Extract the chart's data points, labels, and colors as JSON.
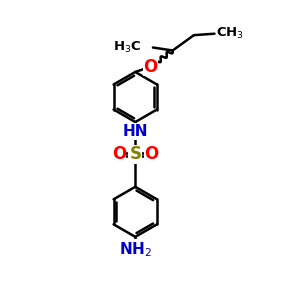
{
  "bg_color": "#ffffff",
  "line_color": "#000000",
  "nh_color": "#0000cd",
  "o_color": "#ff0000",
  "s_color": "#808000",
  "nh2_color": "#0000cd",
  "line_width": 1.8,
  "fig_size": [
    3.0,
    3.0
  ],
  "dpi": 100,
  "ring_r": 0.85,
  "xlim": [
    0,
    10
  ],
  "ylim": [
    0,
    10
  ]
}
